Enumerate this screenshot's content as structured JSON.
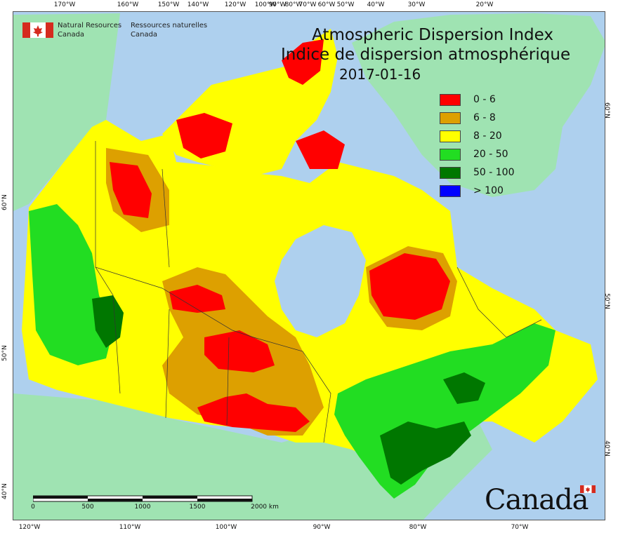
{
  "title": {
    "line1": "Atmospheric Dispersion Index",
    "line2": "Indice de dispersion atmosphérique",
    "date": "2017-01-16"
  },
  "legend": {
    "items": [
      {
        "label": "0 - 6",
        "color": "#ff0000"
      },
      {
        "label": "6 - 8",
        "color": "#dda000"
      },
      {
        "label": "8 - 20",
        "color": "#ffff00"
      },
      {
        "label": "20 - 50",
        "color": "#22dd22"
      },
      {
        "label": "50 - 100",
        "color": "#007700"
      },
      {
        "label": "> 100",
        "color": "#0000ff"
      }
    ]
  },
  "branding": {
    "en_line1": "Natural Resources",
    "en_line2": "Canada",
    "fr_line1": "Ressources naturelles",
    "fr_line2": "Canada",
    "wordmark": "Canada"
  },
  "graticule": {
    "top_labels": [
      "170°W",
      "160°W",
      "150°W",
      "140°W",
      "120°W",
      "100°W",
      "90°W",
      "80°W",
      "70°W",
      "60°W",
      "50°W",
      "40°W",
      "30°W",
      "20°W"
    ],
    "bottom_labels": [
      "120°W",
      "110°W",
      "100°W",
      "90°W",
      "80°W",
      "70°W"
    ],
    "left_labels": [
      "60°N",
      "50°N",
      "40°N"
    ],
    "right_labels": [
      "60°N",
      "50°N",
      "40°N"
    ]
  },
  "scalebar": {
    "labels": [
      "0",
      "500",
      "1000",
      "1500",
      "2000 km"
    ]
  },
  "colors": {
    "water": "#aed0ee",
    "land_foreign": "#9fe3b2"
  }
}
